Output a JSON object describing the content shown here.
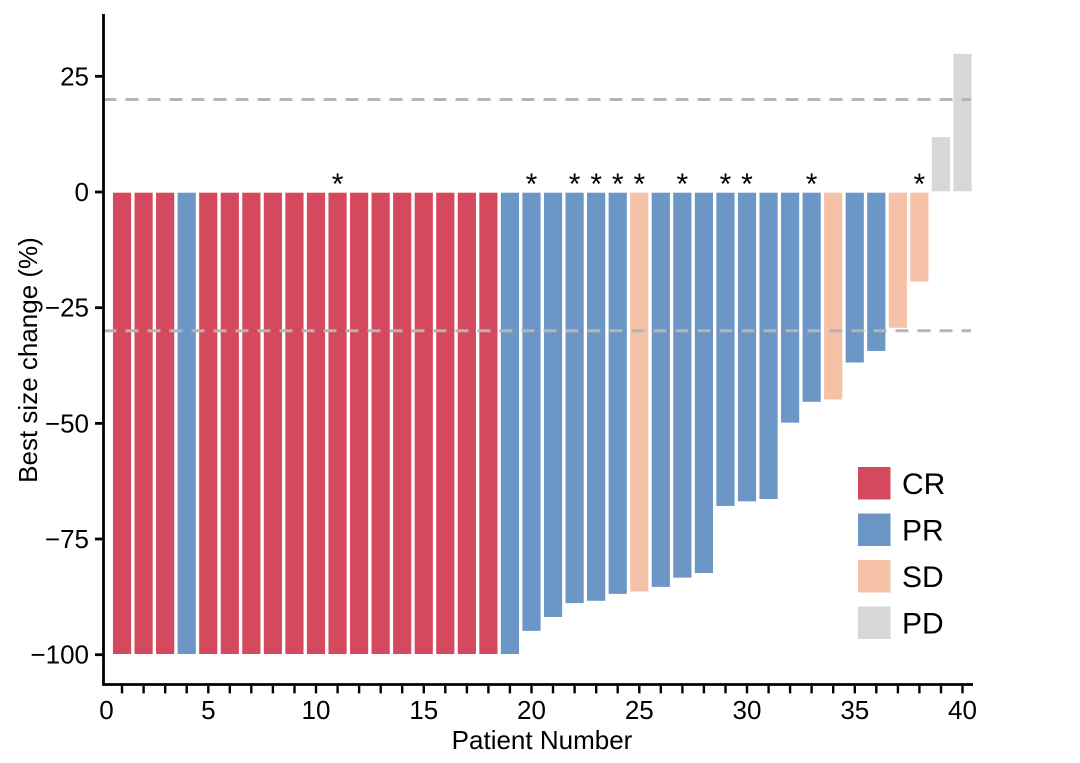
{
  "figure": {
    "background": "#ffffff",
    "axis_color": "#000000",
    "reference_line_color": "#b4b4b4",
    "bar_outline_color": "#ffffff",
    "annotation_symbol": "*"
  },
  "chart_data": {
    "type": "bar",
    "subtype": "waterfall",
    "title": "",
    "xlabel": "Patient Number",
    "ylabel": "Best size change (%)",
    "xlim": [
      0,
      40.5
    ],
    "ylim": [
      -100,
      32
    ],
    "grid": false,
    "x_tick_values": [
      0,
      5,
      10,
      15,
      20,
      25,
      30,
      35,
      40
    ],
    "x_tick_labels": [
      "0",
      "5",
      "10",
      "15",
      "20",
      "25",
      "30",
      "35",
      "40"
    ],
    "x_minor_ticks": "one tick per patient 1-40",
    "y_tick_values": [
      25,
      0,
      -25,
      -50,
      -75,
      -100
    ],
    "y_tick_labels": [
      "25",
      "0",
      "−25",
      "−50",
      "−75",
      "−100"
    ],
    "reference_lines": [
      {
        "y": 20,
        "style": "dashed"
      },
      {
        "y": -30,
        "style": "dashed"
      }
    ],
    "legend": {
      "position": "inside-right",
      "entries": [
        {
          "label": "CR",
          "color": "#d4495e"
        },
        {
          "label": "PR",
          "color": "#6b96c5"
        },
        {
          "label": "SD",
          "color": "#f6c2a7"
        },
        {
          "label": "PD",
          "color": "#d7d7d7"
        }
      ]
    },
    "bars": [
      {
        "patient": 1,
        "value": -100,
        "response": "CR",
        "asterisk": false
      },
      {
        "patient": 2,
        "value": -100,
        "response": "CR",
        "asterisk": false
      },
      {
        "patient": 3,
        "value": -100,
        "response": "CR",
        "asterisk": false
      },
      {
        "patient": 4,
        "value": -100,
        "response": "PR",
        "asterisk": false
      },
      {
        "patient": 5,
        "value": -100,
        "response": "CR",
        "asterisk": false
      },
      {
        "patient": 6,
        "value": -100,
        "response": "CR",
        "asterisk": false
      },
      {
        "patient": 7,
        "value": -100,
        "response": "CR",
        "asterisk": false
      },
      {
        "patient": 8,
        "value": -100,
        "response": "CR",
        "asterisk": false
      },
      {
        "patient": 9,
        "value": -100,
        "response": "CR",
        "asterisk": false
      },
      {
        "patient": 10,
        "value": -100,
        "response": "CR",
        "asterisk": false
      },
      {
        "patient": 11,
        "value": -100,
        "response": "CR",
        "asterisk": true
      },
      {
        "patient": 12,
        "value": -100,
        "response": "CR",
        "asterisk": false
      },
      {
        "patient": 13,
        "value": -100,
        "response": "CR",
        "asterisk": false
      },
      {
        "patient": 14,
        "value": -100,
        "response": "CR",
        "asterisk": false
      },
      {
        "patient": 15,
        "value": -100,
        "response": "CR",
        "asterisk": false
      },
      {
        "patient": 16,
        "value": -100,
        "response": "CR",
        "asterisk": false
      },
      {
        "patient": 17,
        "value": -100,
        "response": "CR",
        "asterisk": false
      },
      {
        "patient": 18,
        "value": -100,
        "response": "CR",
        "asterisk": false
      },
      {
        "patient": 19,
        "value": -100,
        "response": "PR",
        "asterisk": false
      },
      {
        "patient": 20,
        "value": -95,
        "response": "PR",
        "asterisk": true
      },
      {
        "patient": 21,
        "value": -92,
        "response": "PR",
        "asterisk": false
      },
      {
        "patient": 22,
        "value": -89,
        "response": "PR",
        "asterisk": true
      },
      {
        "patient": 23,
        "value": -88.5,
        "response": "PR",
        "asterisk": true
      },
      {
        "patient": 24,
        "value": -87,
        "response": "PR",
        "asterisk": true
      },
      {
        "patient": 25,
        "value": -86.5,
        "response": "SD",
        "asterisk": true
      },
      {
        "patient": 26,
        "value": -85.5,
        "response": "PR",
        "asterisk": false
      },
      {
        "patient": 27,
        "value": -83.5,
        "response": "PR",
        "asterisk": true
      },
      {
        "patient": 28,
        "value": -82.5,
        "response": "PR",
        "asterisk": false
      },
      {
        "patient": 29,
        "value": -68,
        "response": "PR",
        "asterisk": true
      },
      {
        "patient": 30,
        "value": -67,
        "response": "PR",
        "asterisk": true
      },
      {
        "patient": 31,
        "value": -66.5,
        "response": "PR",
        "asterisk": false
      },
      {
        "patient": 32,
        "value": -50,
        "response": "PR",
        "asterisk": false
      },
      {
        "patient": 33,
        "value": -45.5,
        "response": "PR",
        "asterisk": true
      },
      {
        "patient": 34,
        "value": -45,
        "response": "SD",
        "asterisk": false
      },
      {
        "patient": 35,
        "value": -37,
        "response": "PR",
        "asterisk": false
      },
      {
        "patient": 36,
        "value": -34.5,
        "response": "PR",
        "asterisk": false
      },
      {
        "patient": 37,
        "value": -29.5,
        "response": "SD",
        "asterisk": false
      },
      {
        "patient": 38,
        "value": -19.5,
        "response": "SD",
        "asterisk": true
      },
      {
        "patient": 39,
        "value": 12,
        "response": "PD",
        "asterisk": false
      },
      {
        "patient": 40,
        "value": 30,
        "response": "PD",
        "asterisk": false
      }
    ]
  }
}
